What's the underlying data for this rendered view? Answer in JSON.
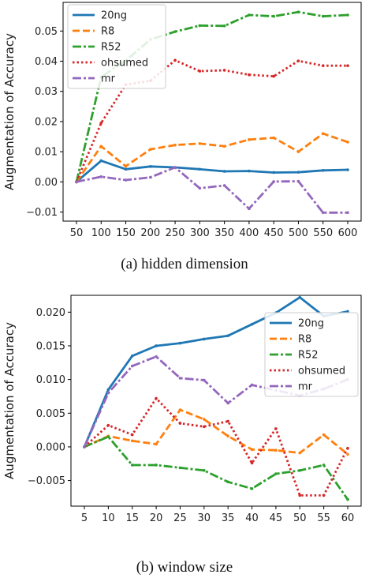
{
  "chart_data": [
    {
      "type": "line",
      "caption": "(a)  hidden dimension",
      "ylabel": "Augmentation of Accuracy",
      "xlabel": "",
      "x": [
        50,
        100,
        150,
        200,
        250,
        300,
        350,
        400,
        450,
        500,
        550,
        600
      ],
      "ylim": [
        -0.013,
        0.0595
      ],
      "yticks": [
        -0.01,
        0.0,
        0.01,
        0.02,
        0.03,
        0.04,
        0.05
      ],
      "ytick_labels": [
        "−0.01",
        "0.00",
        "0.01",
        "0.02",
        "0.03",
        "0.04",
        "0.05"
      ],
      "grid": false,
      "legend_position": "top-left",
      "series": [
        {
          "name": "20ng",
          "color": "#1f77b4",
          "dash": "solid",
          "values": [
            0.0,
            0.007,
            0.0042,
            0.0051,
            0.0048,
            0.0042,
            0.0035,
            0.0036,
            0.0031,
            0.0032,
            0.0038,
            0.004
          ]
        },
        {
          "name": "R8",
          "color": "#ff7f0e",
          "dash": "dashed",
          "values": [
            0.0,
            0.0118,
            0.0052,
            0.0108,
            0.0122,
            0.0127,
            0.0118,
            0.014,
            0.0146,
            0.01,
            0.016,
            0.0132
          ]
        },
        {
          "name": "R52",
          "color": "#2ca02c",
          "dash": "dashdot",
          "values": [
            0.0,
            0.0348,
            0.0402,
            0.0472,
            0.0498,
            0.0518,
            0.0517,
            0.0553,
            0.0549,
            0.0563,
            0.0549,
            0.0553
          ]
        },
        {
          "name": "ohsumed",
          "color": "#d62728",
          "dash": "dotted",
          "values": [
            0.0,
            0.0195,
            0.0322,
            0.0335,
            0.0403,
            0.0367,
            0.037,
            0.0355,
            0.035,
            0.0401,
            0.0385,
            0.0385
          ]
        },
        {
          "name": "mr",
          "color": "#9467bd",
          "dash": "dashdot",
          "values": [
            0.0,
            0.0017,
            0.0006,
            0.0015,
            0.0048,
            -0.0021,
            -0.0012,
            -0.0089,
            0.0001,
            0.0002,
            -0.0102,
            -0.0102
          ]
        }
      ]
    },
    {
      "type": "line",
      "caption": "(b)  window size",
      "ylabel": "Augmentation of Accuracy",
      "xlabel": "",
      "x": [
        5,
        10,
        15,
        20,
        25,
        30,
        35,
        40,
        45,
        50,
        55,
        60
      ],
      "ylim": [
        -0.0088,
        0.0225
      ],
      "yticks": [
        -0.005,
        0.0,
        0.005,
        0.01,
        0.015,
        0.02
      ],
      "ytick_labels": [
        "−0.005",
        "0.000",
        "0.005",
        "0.010",
        "0.015",
        "0.020"
      ],
      "grid": false,
      "legend_position": "top-right",
      "series": [
        {
          "name": "20ng",
          "color": "#1f77b4",
          "dash": "solid",
          "values": [
            0.0,
            0.0085,
            0.0135,
            0.015,
            0.0154,
            0.016,
            0.0165,
            0.0182,
            0.0199,
            0.0222,
            0.0194,
            0.0201
          ]
        },
        {
          "name": "R8",
          "color": "#ff7f0e",
          "dash": "dashed",
          "values": [
            0.0,
            0.0016,
            0.0009,
            0.0004,
            0.0055,
            0.0041,
            0.0016,
            -0.0004,
            -0.0005,
            -0.0009,
            0.0018,
            -0.0011
          ]
        },
        {
          "name": "R52",
          "color": "#2ca02c",
          "dash": "dashdot",
          "values": [
            0.0,
            0.0015,
            -0.0027,
            -0.0027,
            -0.0031,
            -0.0035,
            -0.0052,
            -0.0062,
            -0.004,
            -0.0035,
            -0.0027,
            -0.0078
          ]
        },
        {
          "name": "ohsumed",
          "color": "#d62728",
          "dash": "dotted",
          "values": [
            0.0,
            0.0032,
            0.0018,
            0.0072,
            0.0035,
            0.003,
            0.0038,
            -0.0024,
            0.0027,
            -0.0072,
            -0.0072,
            -0.0002
          ]
        },
        {
          "name": "mr",
          "color": "#9467bd",
          "dash": "dashdot",
          "values": [
            0.0,
            0.008,
            0.012,
            0.0134,
            0.0102,
            0.0099,
            0.0065,
            0.0092,
            0.0084,
            0.0076,
            0.0086,
            0.01
          ]
        }
      ]
    }
  ]
}
